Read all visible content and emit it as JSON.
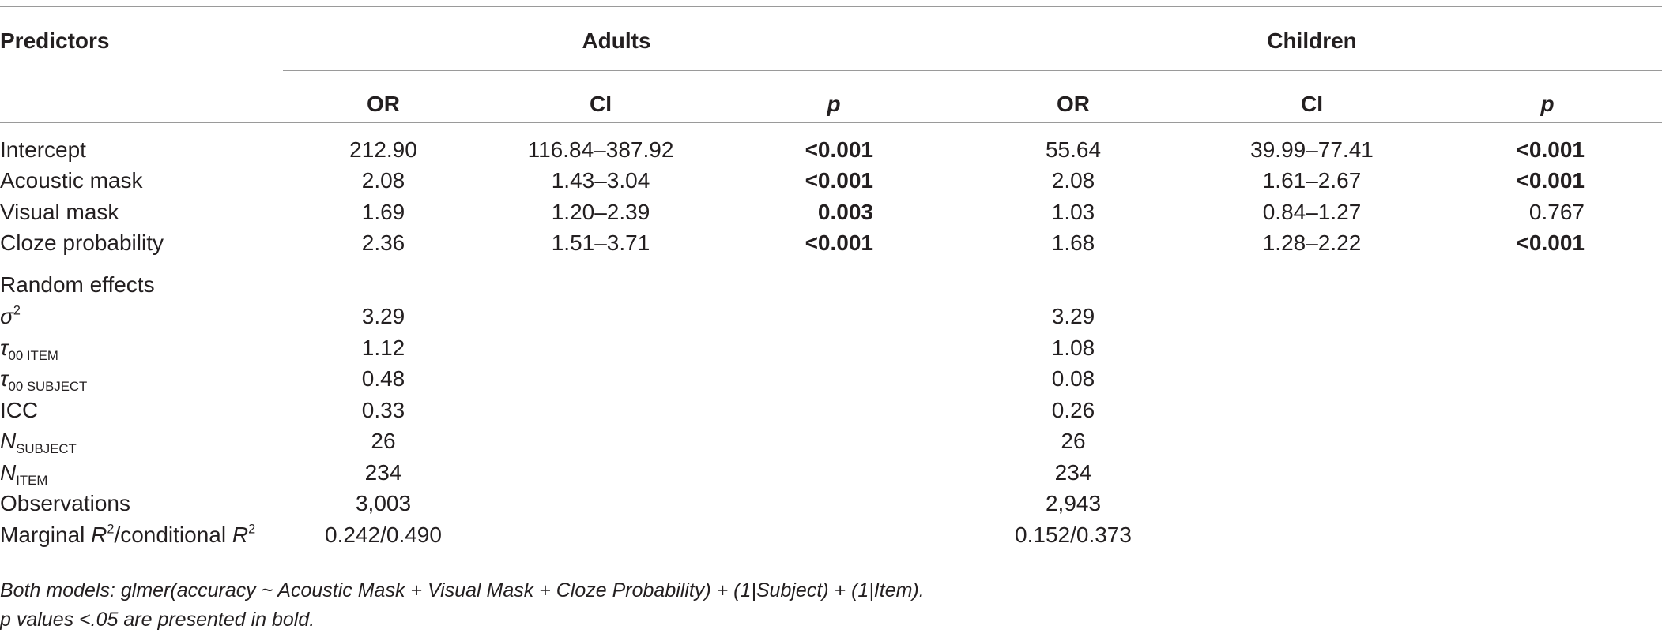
{
  "table": {
    "headers": {
      "predictors": "Predictors",
      "adults": "Adults",
      "children": "Children",
      "cols": [
        "OR",
        "CI",
        "p",
        "OR",
        "CI",
        "p"
      ]
    },
    "predictor_rows": [
      {
        "label": "Intercept",
        "a_or": "212.90",
        "a_ci": "116.84–387.92",
        "a_p": "<0.001",
        "a_p_bold": true,
        "c_or": "55.64",
        "c_ci": "39.99–77.41",
        "c_p": "<0.001",
        "c_p_bold": true
      },
      {
        "label": "Acoustic mask",
        "a_or": "2.08",
        "a_ci": "1.43–3.04",
        "a_p": "<0.001",
        "a_p_bold": true,
        "c_or": "2.08",
        "c_ci": "1.61–2.67",
        "c_p": "<0.001",
        "c_p_bold": true
      },
      {
        "label": "Visual mask",
        "a_or": "1.69",
        "a_ci": "1.20–2.39",
        "a_p": "0.003",
        "a_p_bold": true,
        "c_or": "1.03",
        "c_ci": "0.84–1.27",
        "c_p": "0.767",
        "c_p_bold": false
      },
      {
        "label": "Cloze probability",
        "a_or": "2.36",
        "a_ci": "1.51–3.71",
        "a_p": "<0.001",
        "a_p_bold": true,
        "c_or": "1.68",
        "c_ci": "1.28–2.22",
        "c_p": "<0.001",
        "c_p_bold": true
      }
    ],
    "random_effects": {
      "title": "Random effects",
      "sigma": {
        "sym": "σ",
        "sup": "2",
        "adults": "3.29",
        "children": "3.29"
      },
      "tau_item": {
        "sym": "τ",
        "sub": "00 ITEM",
        "adults": "1.12",
        "children": "1.08"
      },
      "tau_subject": {
        "sym": "τ",
        "sub": "00 SUBJECT",
        "adults": "0.48",
        "children": "0.08"
      },
      "icc": {
        "label": "ICC",
        "adults": "0.33",
        "children": "0.26"
      },
      "n_subject": {
        "sym": "N",
        "sub": "SUBJECT",
        "adults": "26",
        "children": "26"
      },
      "n_item": {
        "sym": "N",
        "sub": "ITEM",
        "adults": "234",
        "children": "234"
      },
      "observations": {
        "label": "Observations",
        "adults": "3,003",
        "children": "2,943"
      },
      "r2": {
        "pre": "Marginal ",
        "r": "R",
        "sup": "2",
        "mid": "/conditional ",
        "adults": "0.242/0.490",
        "children": "0.152/0.373"
      }
    }
  },
  "footnotes": [
    "Both models: glmer(accuracy ~ Acoustic Mask + Visual Mask + Cloze Probability) + (1|Subject) + (1|Item).",
    "p values <.05 are presented in bold."
  ]
}
